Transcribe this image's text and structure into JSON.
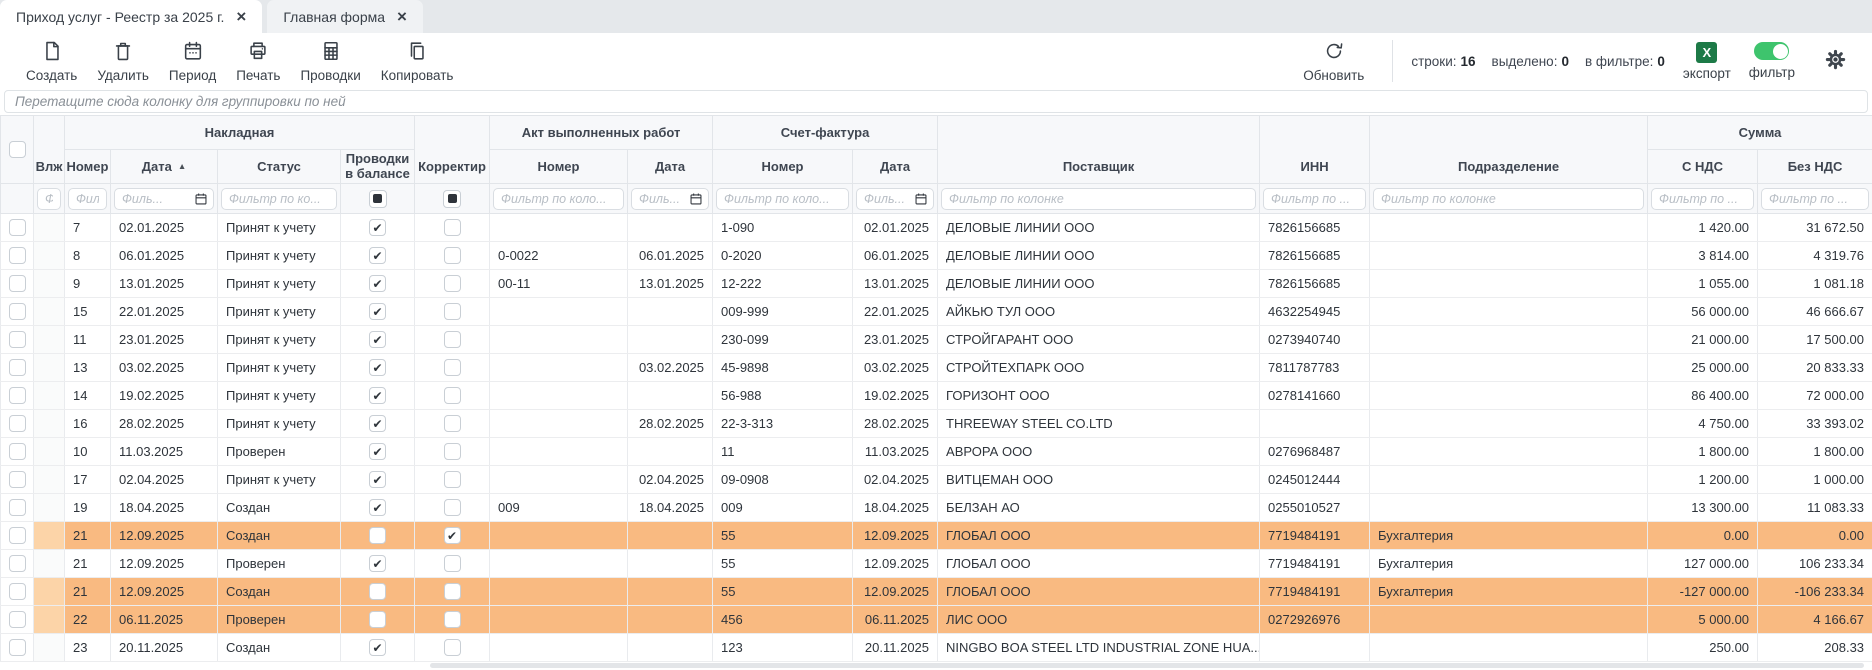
{
  "tabs": [
    {
      "label": "Приход услуг - Реестр за 2025 г.",
      "close": "×",
      "active": true
    },
    {
      "label": "Главная форма",
      "close": "×",
      "active": false
    }
  ],
  "toolbar": {
    "buttons": [
      {
        "id": "create",
        "label": "Создать"
      },
      {
        "id": "delete",
        "label": "Удалить"
      },
      {
        "id": "period",
        "label": "Период"
      },
      {
        "id": "print",
        "label": "Печать"
      },
      {
        "id": "postings",
        "label": "Проводки"
      },
      {
        "id": "copy",
        "label": "Копировать"
      }
    ],
    "refresh_label": "Обновить",
    "counters": [
      {
        "label": "строки:",
        "value": "16"
      },
      {
        "label": "выделено:",
        "value": "0"
      },
      {
        "label": "в фильтре:",
        "value": "0"
      }
    ],
    "export_label": "экспорт",
    "export_icon_letter": "X",
    "filter_label": "фильтр",
    "filter_on": true
  },
  "group_bar_hint": "Перетащите сюда колонку для группировки по ней",
  "table": {
    "groups": {
      "naklad": "Накладная",
      "act": "Акт выполненных работ",
      "invoice": "Счет-фактура",
      "amount": "Сумма"
    },
    "columns": {
      "attach": "Влж",
      "num": "Номер",
      "date": "Дата",
      "status": "Статус",
      "posted": "Проводки в балансе",
      "correction": "Корректир",
      "act_num": "Номер",
      "act_date": "Дата",
      "inv_num": "Номер",
      "inv_date": "Дата",
      "supplier": "Поставщик",
      "inn": "ИНН",
      "department": "Подразделение",
      "with_vat": "С НДС",
      "without_vat": "Без НДС"
    },
    "sort": {
      "column": "date",
      "direction": "asc",
      "glyph": "▲"
    },
    "filters": {
      "attach": "Ф.",
      "num": "Фил...",
      "date": "Филь...",
      "status": "Фильтр по ко...",
      "act_num": "Фильтр по коло...",
      "act_date": "Филь...",
      "inv_num": "Фильтр по коло...",
      "inv_date": "Филь...",
      "supplier": "Фильтр по колонке",
      "inn": "Фильтр по ...",
      "department": "Фильтр по колонке",
      "with_vat": "Фильтр по ...",
      "without_vat": "Фильтр по ..."
    },
    "rows": [
      {
        "num": "7",
        "date": "02.01.2025",
        "status": "Принят к учету",
        "posted": true,
        "correction": false,
        "act_num": "",
        "act_date": "",
        "inv_num": "1-090",
        "inv_date": "02.01.2025",
        "supplier": "ДЕЛОВЫЕ ЛИНИИ ООО",
        "inn": "7826156685",
        "department": "",
        "with_vat": "1 420.00",
        "without_vat": "31 672.50",
        "highlight": false
      },
      {
        "num": "8",
        "date": "06.01.2025",
        "status": "Принят к учету",
        "posted": true,
        "correction": false,
        "act_num": "0-0022",
        "act_date": "06.01.2025",
        "inv_num": "0-2020",
        "inv_date": "06.01.2025",
        "supplier": "ДЕЛОВЫЕ ЛИНИИ ООО",
        "inn": "7826156685",
        "department": "",
        "with_vat": "3 814.00",
        "without_vat": "4 319.76",
        "highlight": false
      },
      {
        "num": "9",
        "date": "13.01.2025",
        "status": "Принят к учету",
        "posted": true,
        "correction": false,
        "act_num": "00-11",
        "act_date": "13.01.2025",
        "inv_num": "12-222",
        "inv_date": "13.01.2025",
        "supplier": "ДЕЛОВЫЕ ЛИНИИ ООО",
        "inn": "7826156685",
        "department": "",
        "with_vat": "1 055.00",
        "without_vat": "1 081.18",
        "highlight": false
      },
      {
        "num": "15",
        "date": "22.01.2025",
        "status": "Принят к учету",
        "posted": true,
        "correction": false,
        "act_num": "",
        "act_date": "",
        "inv_num": "009-999",
        "inv_date": "22.01.2025",
        "supplier": "АЙКЬЮ ТУЛ ООО",
        "inn": "4632254945",
        "department": "",
        "with_vat": "56 000.00",
        "without_vat": "46 666.67",
        "highlight": false
      },
      {
        "num": "11",
        "date": "23.01.2025",
        "status": "Принят к учету",
        "posted": true,
        "correction": false,
        "act_num": "",
        "act_date": "",
        "inv_num": "230-099",
        "inv_date": "23.01.2025",
        "supplier": "СТРОЙГАРАНТ ООО",
        "inn": "0273940740",
        "department": "",
        "with_vat": "21 000.00",
        "without_vat": "17 500.00",
        "highlight": false
      },
      {
        "num": "13",
        "date": "03.02.2025",
        "status": "Принят к учету",
        "posted": true,
        "correction": false,
        "act_num": "",
        "act_date": "03.02.2025",
        "inv_num": "45-9898",
        "inv_date": "03.02.2025",
        "supplier": "СТРОЙТЕХПАРК ООО",
        "inn": "7811787783",
        "department": "",
        "with_vat": "25 000.00",
        "without_vat": "20 833.33",
        "highlight": false
      },
      {
        "num": "14",
        "date": "19.02.2025",
        "status": "Принят к учету",
        "posted": true,
        "correction": false,
        "act_num": "",
        "act_date": "",
        "inv_num": "56-988",
        "inv_date": "19.02.2025",
        "supplier": "ГОРИЗОНТ ООО",
        "inn": "0278141660",
        "department": "",
        "with_vat": "86 400.00",
        "without_vat": "72 000.00",
        "highlight": false
      },
      {
        "num": "16",
        "date": "28.02.2025",
        "status": "Принят к учету",
        "posted": true,
        "correction": false,
        "act_num": "",
        "act_date": "28.02.2025",
        "inv_num": "22-3-313",
        "inv_date": "28.02.2025",
        "supplier": "THREEWAY STEEL CO.LTD",
        "inn": "",
        "department": "",
        "with_vat": "4 750.00",
        "without_vat": "33 393.02",
        "highlight": false
      },
      {
        "num": "10",
        "date": "11.03.2025",
        "status": "Проверен",
        "posted": true,
        "correction": false,
        "act_num": "",
        "act_date": "",
        "inv_num": "11",
        "inv_date": "11.03.2025",
        "supplier": "АВРОРА ООО",
        "inn": "0276968487",
        "department": "",
        "with_vat": "1 800.00",
        "without_vat": "1 800.00",
        "highlight": false
      },
      {
        "num": "17",
        "date": "02.04.2025",
        "status": "Принят к учету",
        "posted": true,
        "correction": false,
        "act_num": "",
        "act_date": "02.04.2025",
        "inv_num": "09-0908",
        "inv_date": "02.04.2025",
        "supplier": "ВИТЦЕМАН ООО",
        "inn": "0245012444",
        "department": "",
        "with_vat": "1 200.00",
        "without_vat": "1 000.00",
        "highlight": false
      },
      {
        "num": "19",
        "date": "18.04.2025",
        "status": "Создан",
        "posted": true,
        "correction": false,
        "act_num": "009",
        "act_date": "18.04.2025",
        "inv_num": "009",
        "inv_date": "18.04.2025",
        "supplier": "БЕЛЗАН АО",
        "inn": "0255010527",
        "department": "",
        "with_vat": "13 300.00",
        "without_vat": "11 083.33",
        "highlight": false
      },
      {
        "num": "21",
        "date": "12.09.2025",
        "status": "Создан",
        "posted": false,
        "correction": true,
        "act_num": "",
        "act_date": "",
        "inv_num": "55",
        "inv_date": "12.09.2025",
        "supplier": "ГЛОБАЛ ООО",
        "inn": "7719484191",
        "department": "Бухгалтерия",
        "with_vat": "0.00",
        "without_vat": "0.00",
        "highlight": true
      },
      {
        "num": "21",
        "date": "12.09.2025",
        "status": "Проверен",
        "posted": true,
        "correction": false,
        "act_num": "",
        "act_date": "",
        "inv_num": "55",
        "inv_date": "12.09.2025",
        "supplier": "ГЛОБАЛ ООО",
        "inn": "7719484191",
        "department": "Бухгалтерия",
        "with_vat": "127 000.00",
        "without_vat": "106 233.34",
        "highlight": false
      },
      {
        "num": "21",
        "date": "12.09.2025",
        "status": "Создан",
        "posted": false,
        "correction": false,
        "act_num": "",
        "act_date": "",
        "inv_num": "55",
        "inv_date": "12.09.2025",
        "supplier": "ГЛОБАЛ ООО",
        "inn": "7719484191",
        "department": "Бухгалтерия",
        "with_vat": "-127 000.00",
        "without_vat": "-106 233.34",
        "highlight": true
      },
      {
        "num": "22",
        "date": "06.11.2025",
        "status": "Проверен",
        "posted": false,
        "correction": false,
        "act_num": "",
        "act_date": "",
        "inv_num": "456",
        "inv_date": "06.11.2025",
        "supplier": "ЛИС ООО",
        "inn": "0272926976",
        "department": "",
        "with_vat": "5 000.00",
        "without_vat": "4 166.67",
        "highlight": true
      },
      {
        "num": "23",
        "date": "20.11.2025",
        "status": "Создан",
        "posted": true,
        "correction": false,
        "act_num": "",
        "act_date": "",
        "inv_num": "123",
        "inv_date": "20.11.2025",
        "supplier": "NINGBO BOA STEEL LTD INDUSTRIAL ZONE HUA...",
        "inn": "",
        "department": "",
        "with_vat": "250.00",
        "without_vat": "208.33",
        "highlight": false
      }
    ]
  },
  "colors": {
    "highlight_row": "#f9ba81",
    "highlight_attach_cell": "#fcd4a8",
    "toggle_on_green": "#3ec46d",
    "excel_green": "#1d7a47",
    "icon_dark": "#3a4149"
  }
}
